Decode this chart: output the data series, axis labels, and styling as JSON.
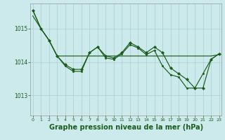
{
  "background_color": "#cce9eb",
  "plot_background": "#cce9eb",
  "grid_color": "#aacece",
  "line_color": "#1a5c1a",
  "marker_color": "#1a5c1a",
  "xlabel": "Graphe pression niveau de la mer (hPa)",
  "xlabel_fontsize": 7,
  "xticks": [
    0,
    1,
    2,
    3,
    4,
    5,
    6,
    7,
    8,
    9,
    10,
    11,
    12,
    13,
    14,
    15,
    16,
    17,
    18,
    19,
    20,
    21,
    22,
    23
  ],
  "yticks": [
    1013,
    1014,
    1015
  ],
  "ylim": [
    1012.4,
    1015.75
  ],
  "xlim": [
    -0.3,
    23.3
  ],
  "series1_x": [
    0,
    1,
    2,
    3,
    4,
    5,
    6,
    7,
    8,
    9,
    10,
    11,
    12,
    13,
    14,
    15,
    16,
    17,
    18,
    19,
    20,
    21,
    22,
    23
  ],
  "series1_y": [
    1015.38,
    1015.0,
    1014.65,
    1014.18,
    1014.18,
    1014.18,
    1014.18,
    1014.18,
    1014.18,
    1014.18,
    1014.18,
    1014.18,
    1014.18,
    1014.18,
    1014.18,
    1014.18,
    1014.18,
    1014.18,
    1014.18,
    1014.18,
    1014.18,
    1014.18,
    1014.18,
    1014.22
  ],
  "series2_x": [
    0,
    1,
    2,
    3,
    4,
    5,
    6,
    7,
    8,
    9,
    10,
    11,
    12,
    13,
    14,
    15,
    16,
    17,
    18,
    19,
    20,
    21,
    22,
    23
  ],
  "series2_y": [
    1015.55,
    1015.0,
    1014.65,
    1014.18,
    1013.92,
    1013.78,
    1013.78,
    1014.28,
    1014.45,
    1014.18,
    1014.12,
    1014.28,
    1014.58,
    1014.45,
    1014.28,
    1014.45,
    1014.28,
    1013.82,
    1013.65,
    1013.48,
    1013.22,
    1013.22,
    1014.08,
    1014.25
  ],
  "series3_x": [
    0,
    1,
    2,
    3,
    4,
    5,
    6,
    7,
    8,
    9,
    10,
    11,
    12,
    13,
    14,
    15,
    16,
    17,
    18,
    19,
    20,
    21,
    22,
    23
  ],
  "series3_y": [
    1015.55,
    1015.0,
    1014.65,
    1014.18,
    1013.88,
    1013.72,
    1013.72,
    1014.28,
    1014.45,
    1014.12,
    1014.08,
    1014.25,
    1014.52,
    1014.42,
    1014.22,
    1014.35,
    1013.88,
    1013.62,
    1013.55,
    1013.22,
    1013.22,
    1013.65,
    1014.08,
    1014.25
  ]
}
